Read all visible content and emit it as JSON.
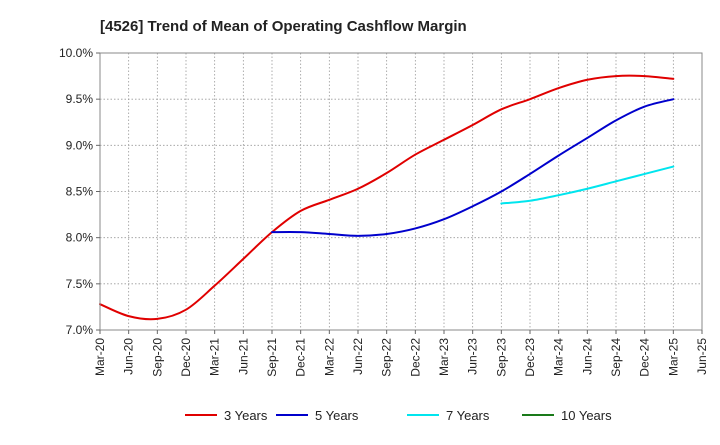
{
  "chart_data": {
    "type": "line",
    "title": "[4526]  Trend of Mean of Operating Cashflow Margin",
    "xlabel": "",
    "ylabel": "",
    "x_ticks": [
      "Mar-20",
      "Jun-20",
      "Sep-20",
      "Dec-20",
      "Mar-21",
      "Jun-21",
      "Sep-21",
      "Dec-21",
      "Mar-22",
      "Jun-22",
      "Sep-22",
      "Dec-22",
      "Mar-23",
      "Jun-23",
      "Sep-23",
      "Dec-23",
      "Mar-24",
      "Jun-24",
      "Sep-24",
      "Dec-24",
      "Mar-25",
      "Jun-25"
    ],
    "y_ticks": [
      "7.0%",
      "7.5%",
      "8.0%",
      "8.5%",
      "9.0%",
      "9.5%",
      "10.0%"
    ],
    "ylim": [
      7.0,
      10.0
    ],
    "grid": true,
    "legend_position": "bottom",
    "series": [
      {
        "name": "3 Years",
        "color": "#e00000",
        "x": [
          "Mar-20",
          "Jun-20",
          "Sep-20",
          "Dec-20",
          "Mar-21",
          "Jun-21",
          "Sep-21",
          "Dec-21",
          "Mar-22",
          "Jun-22",
          "Sep-22",
          "Dec-22",
          "Mar-23",
          "Jun-23",
          "Sep-23",
          "Dec-23",
          "Mar-24",
          "Jun-24",
          "Sep-24",
          "Dec-24",
          "Mar-25"
        ],
        "values": [
          7.28,
          7.15,
          7.12,
          7.22,
          7.48,
          7.77,
          8.06,
          8.29,
          8.41,
          8.53,
          8.7,
          8.9,
          9.06,
          9.22,
          9.39,
          9.5,
          9.62,
          9.71,
          9.75,
          9.75,
          9.72
        ]
      },
      {
        "name": "5 Years",
        "color": "#0000cc",
        "x": [
          "Sep-21",
          "Dec-21",
          "Mar-22",
          "Jun-22",
          "Sep-22",
          "Dec-22",
          "Mar-23",
          "Jun-23",
          "Sep-23",
          "Dec-23",
          "Mar-24",
          "Jun-24",
          "Sep-24",
          "Dec-24",
          "Mar-25"
        ],
        "values": [
          8.06,
          8.06,
          8.04,
          8.02,
          8.04,
          8.1,
          8.2,
          8.34,
          8.5,
          8.69,
          8.89,
          9.08,
          9.27,
          9.42,
          9.5
        ]
      },
      {
        "name": "7 Years",
        "color": "#00e5ee",
        "x": [
          "Sep-23",
          "Dec-23",
          "Mar-24",
          "Jun-24",
          "Sep-24",
          "Dec-24",
          "Mar-25"
        ],
        "values": [
          8.37,
          8.4,
          8.46,
          8.53,
          8.61,
          8.69,
          8.77
        ]
      },
      {
        "name": "10 Years",
        "color": "#1a7a1a",
        "x": [],
        "values": []
      }
    ]
  }
}
